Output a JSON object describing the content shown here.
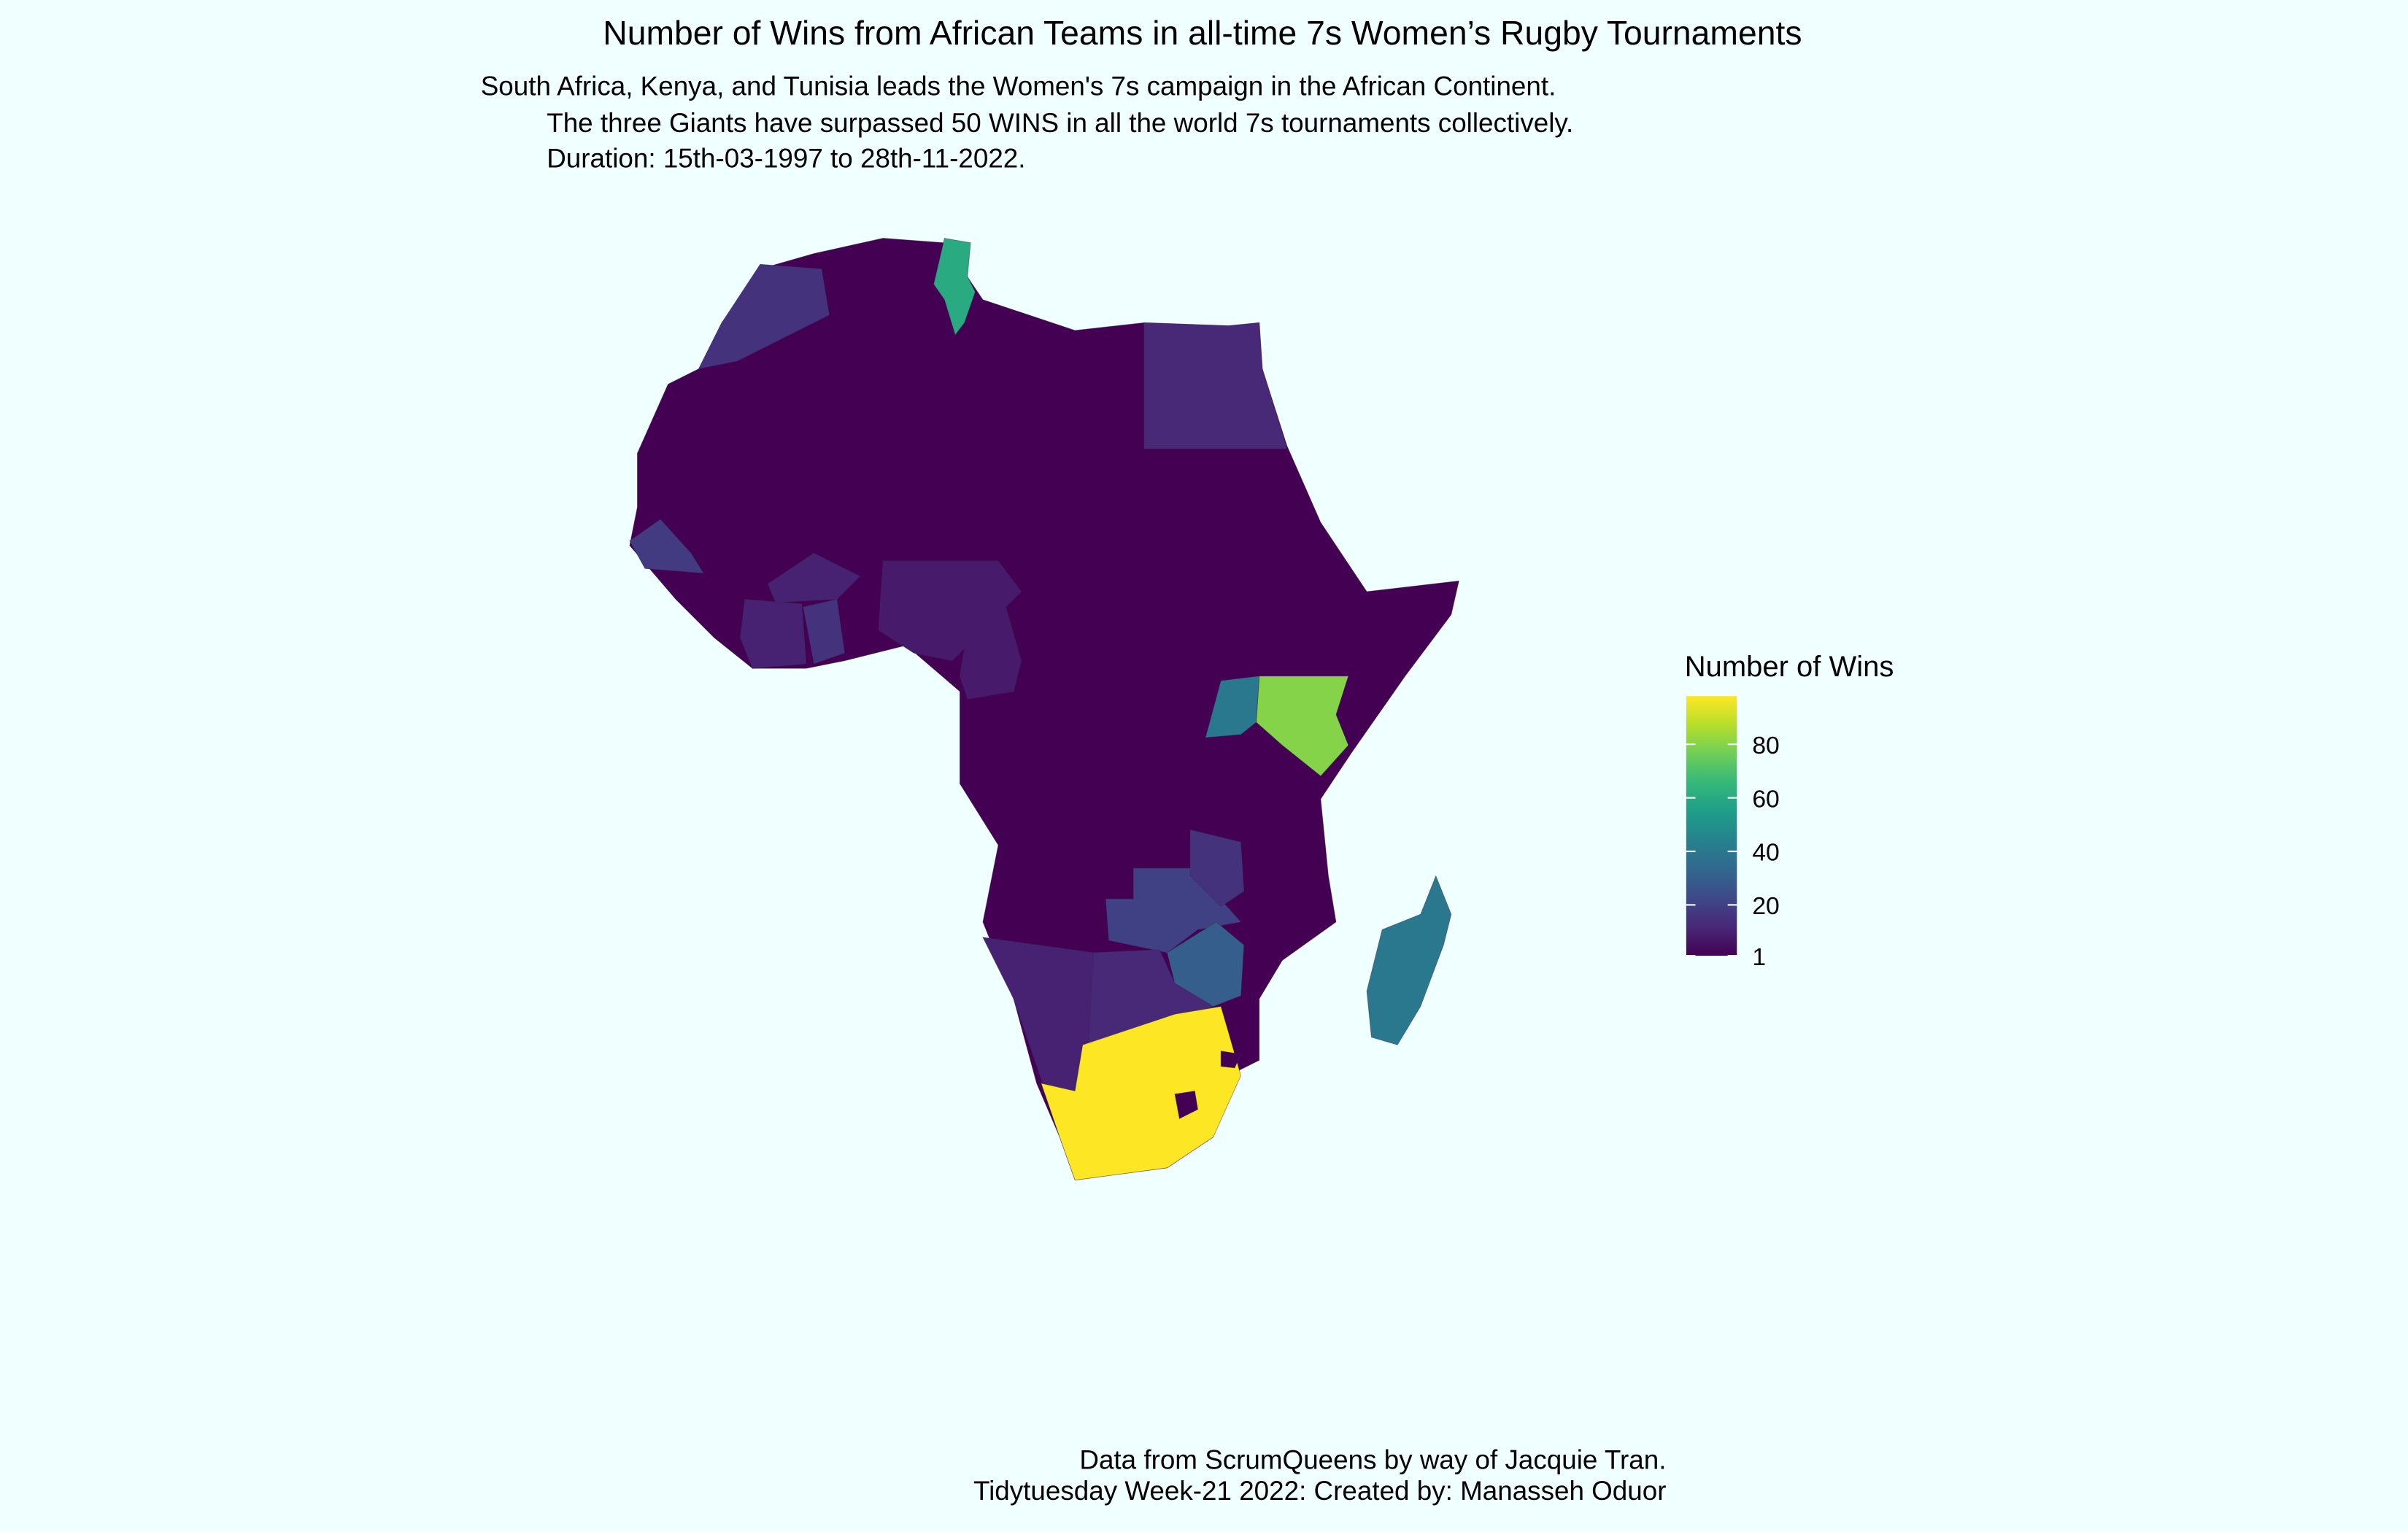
{
  "chart_data": {
    "type": "choropleth",
    "title": "Number of Wins from African Teams in all-time 7s Women’s Rugby Tournaments",
    "subtitle": [
      "South Africa, Kenya, and Tunisia leads the Women's 7s campaign in the African Continent.",
      "The three Giants have  surpassed 50 WINS in all the world 7s tournaments collectively.",
      "Duration: 15th-03-1997 to 28th-11-2022."
    ],
    "caption": [
      "Data from ScrumQueens by way of Jacquie Tran.",
      "Tidytuesday Week-21 2022: Created by: Manasseh Oduor"
    ],
    "legend_title": "Number of Wins",
    "palette": [
      "#440154",
      "#482878",
      "#3e4989",
      "#31688e",
      "#26828e",
      "#1f9e89",
      "#35b779",
      "#6ece58",
      "#b5de2b",
      "#fde725"
    ],
    "colorlim": [
      1,
      98
    ],
    "ticks": [
      1,
      20,
      40,
      60,
      80
    ],
    "values": [
      1,
      60,
      15,
      12,
      18,
      80,
      40,
      20,
      15,
      30,
      12,
      10,
      98,
      1,
      1,
      15,
      10,
      10,
      8,
      8,
      40
    ]
  }
}
